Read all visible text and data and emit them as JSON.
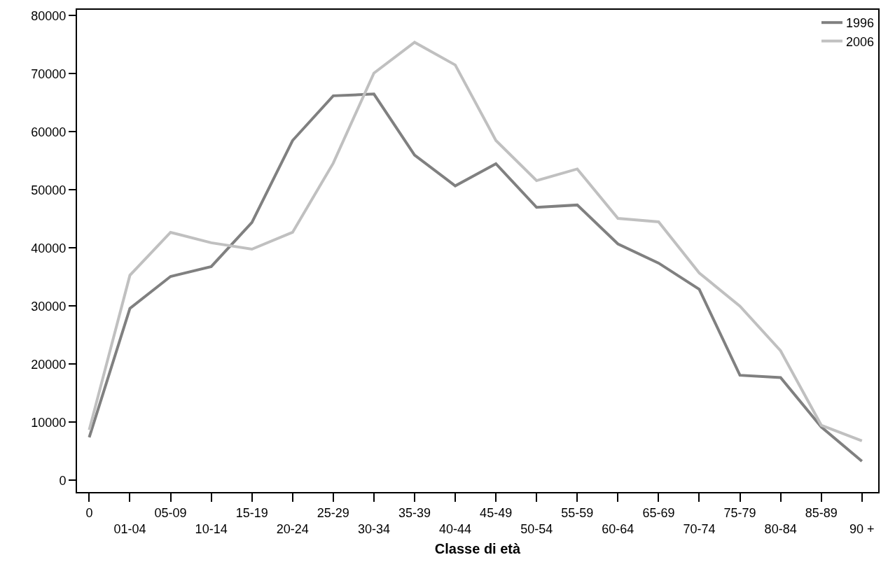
{
  "chart_data": {
    "type": "line",
    "xlabel": "Classe di età",
    "categories": [
      "0",
      "01-04",
      "05-09",
      "10-14",
      "15-19",
      "20-24",
      "25-29",
      "30-34",
      "35-39",
      "40-44",
      "45-49",
      "50-54",
      "55-59",
      "60-64",
      "65-69",
      "70-74",
      "75-79",
      "80-84",
      "85-89",
      "90 +"
    ],
    "series": [
      {
        "name": "1996",
        "color": "#808080",
        "values": [
          7400,
          29600,
          35100,
          36800,
          44400,
          58500,
          66200,
          66500,
          56000,
          50700,
          54500,
          47000,
          47400,
          40700,
          37400,
          32900,
          18100,
          17700,
          9200,
          3300
        ]
      },
      {
        "name": "2006",
        "color": "#c0c0c0",
        "values": [
          8700,
          35300,
          42700,
          40900,
          39800,
          42700,
          54600,
          70100,
          75400,
          71500,
          58500,
          51600,
          53600,
          45100,
          44500,
          35700,
          30000,
          22300,
          9500,
          6800
        ]
      }
    ],
    "ylim": [
      -2000,
      81000
    ],
    "yticks": [
      0,
      10000,
      20000,
      30000,
      40000,
      50000,
      60000,
      70000,
      80000
    ],
    "grid": false,
    "legend": "top right",
    "marker": "none",
    "line_style": "solid"
  }
}
